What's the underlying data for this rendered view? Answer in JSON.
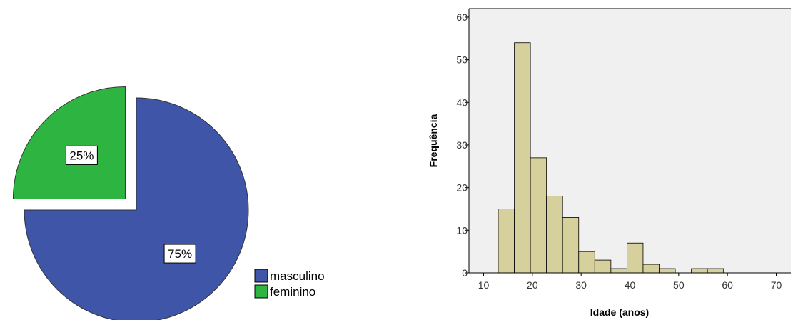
{
  "chart_data": [
    {
      "type": "pie",
      "slices": [
        {
          "label": "masculino",
          "value": 75,
          "display": "75%",
          "color": "#3e55a8",
          "exploded": false
        },
        {
          "label": "feminino",
          "value": 25,
          "display": "25%",
          "color": "#2eb541",
          "exploded": true
        }
      ],
      "legend": [
        "masculino",
        "feminino"
      ],
      "legend_position": "bottom-right"
    },
    {
      "type": "bar",
      "subtype": "histogram",
      "xlabel": "Idade (anos)",
      "ylabel": "Frequência",
      "xlim": [
        7,
        73
      ],
      "ylim": [
        0,
        62
      ],
      "xticks": [
        10,
        20,
        30,
        40,
        50,
        60,
        70
      ],
      "yticks": [
        0,
        10,
        20,
        30,
        40,
        50,
        60
      ],
      "bin_width": 3.3,
      "bins": [
        {
          "start": 13.0,
          "value": 15
        },
        {
          "start": 16.3,
          "value": 54
        },
        {
          "start": 19.6,
          "value": 27
        },
        {
          "start": 22.9,
          "value": 18
        },
        {
          "start": 26.2,
          "value": 13
        },
        {
          "start": 29.5,
          "value": 5
        },
        {
          "start": 32.8,
          "value": 3
        },
        {
          "start": 36.1,
          "value": 1
        },
        {
          "start": 39.4,
          "value": 7
        },
        {
          "start": 42.7,
          "value": 2
        },
        {
          "start": 46.0,
          "value": 1
        },
        {
          "start": 49.3,
          "value": 0
        },
        {
          "start": 52.6,
          "value": 1
        },
        {
          "start": 55.9,
          "value": 1
        }
      ],
      "bar_color": "#d6d09c",
      "background": "#f0f0f0"
    }
  ]
}
